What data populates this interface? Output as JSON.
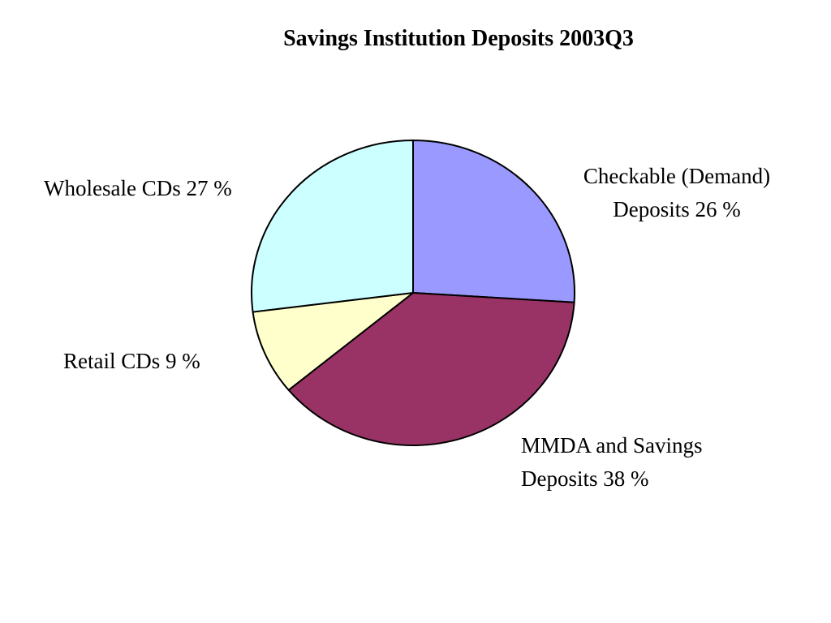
{
  "chart_data": {
    "type": "pie",
    "title": "Savings Institution Deposits 2003Q3",
    "unit": "%",
    "slices": [
      {
        "label": "Checkable (Demand) Deposits",
        "label_lines": [
          "Checkable (Demand)",
          "Deposits 26 %"
        ],
        "value": 26,
        "color": "#9999ff"
      },
      {
        "label": "MMDA and Savings Deposits",
        "label_lines": [
          "MMDA and Savings",
          "Deposits 38 %"
        ],
        "value": 38,
        "color": "#993366"
      },
      {
        "label": "Retail CDs",
        "label_lines": [
          "Retail CDs 9 %"
        ],
        "value": 9,
        "color": "#ffffcc"
      },
      {
        "label": "Wholesale CDs",
        "label_lines": [
          "Wholesale CDs 27 %"
        ],
        "value": 27,
        "color": "#ccffff"
      }
    ],
    "start_angle_deg": 0,
    "direction": "clockwise",
    "outline_color": "#000000"
  }
}
